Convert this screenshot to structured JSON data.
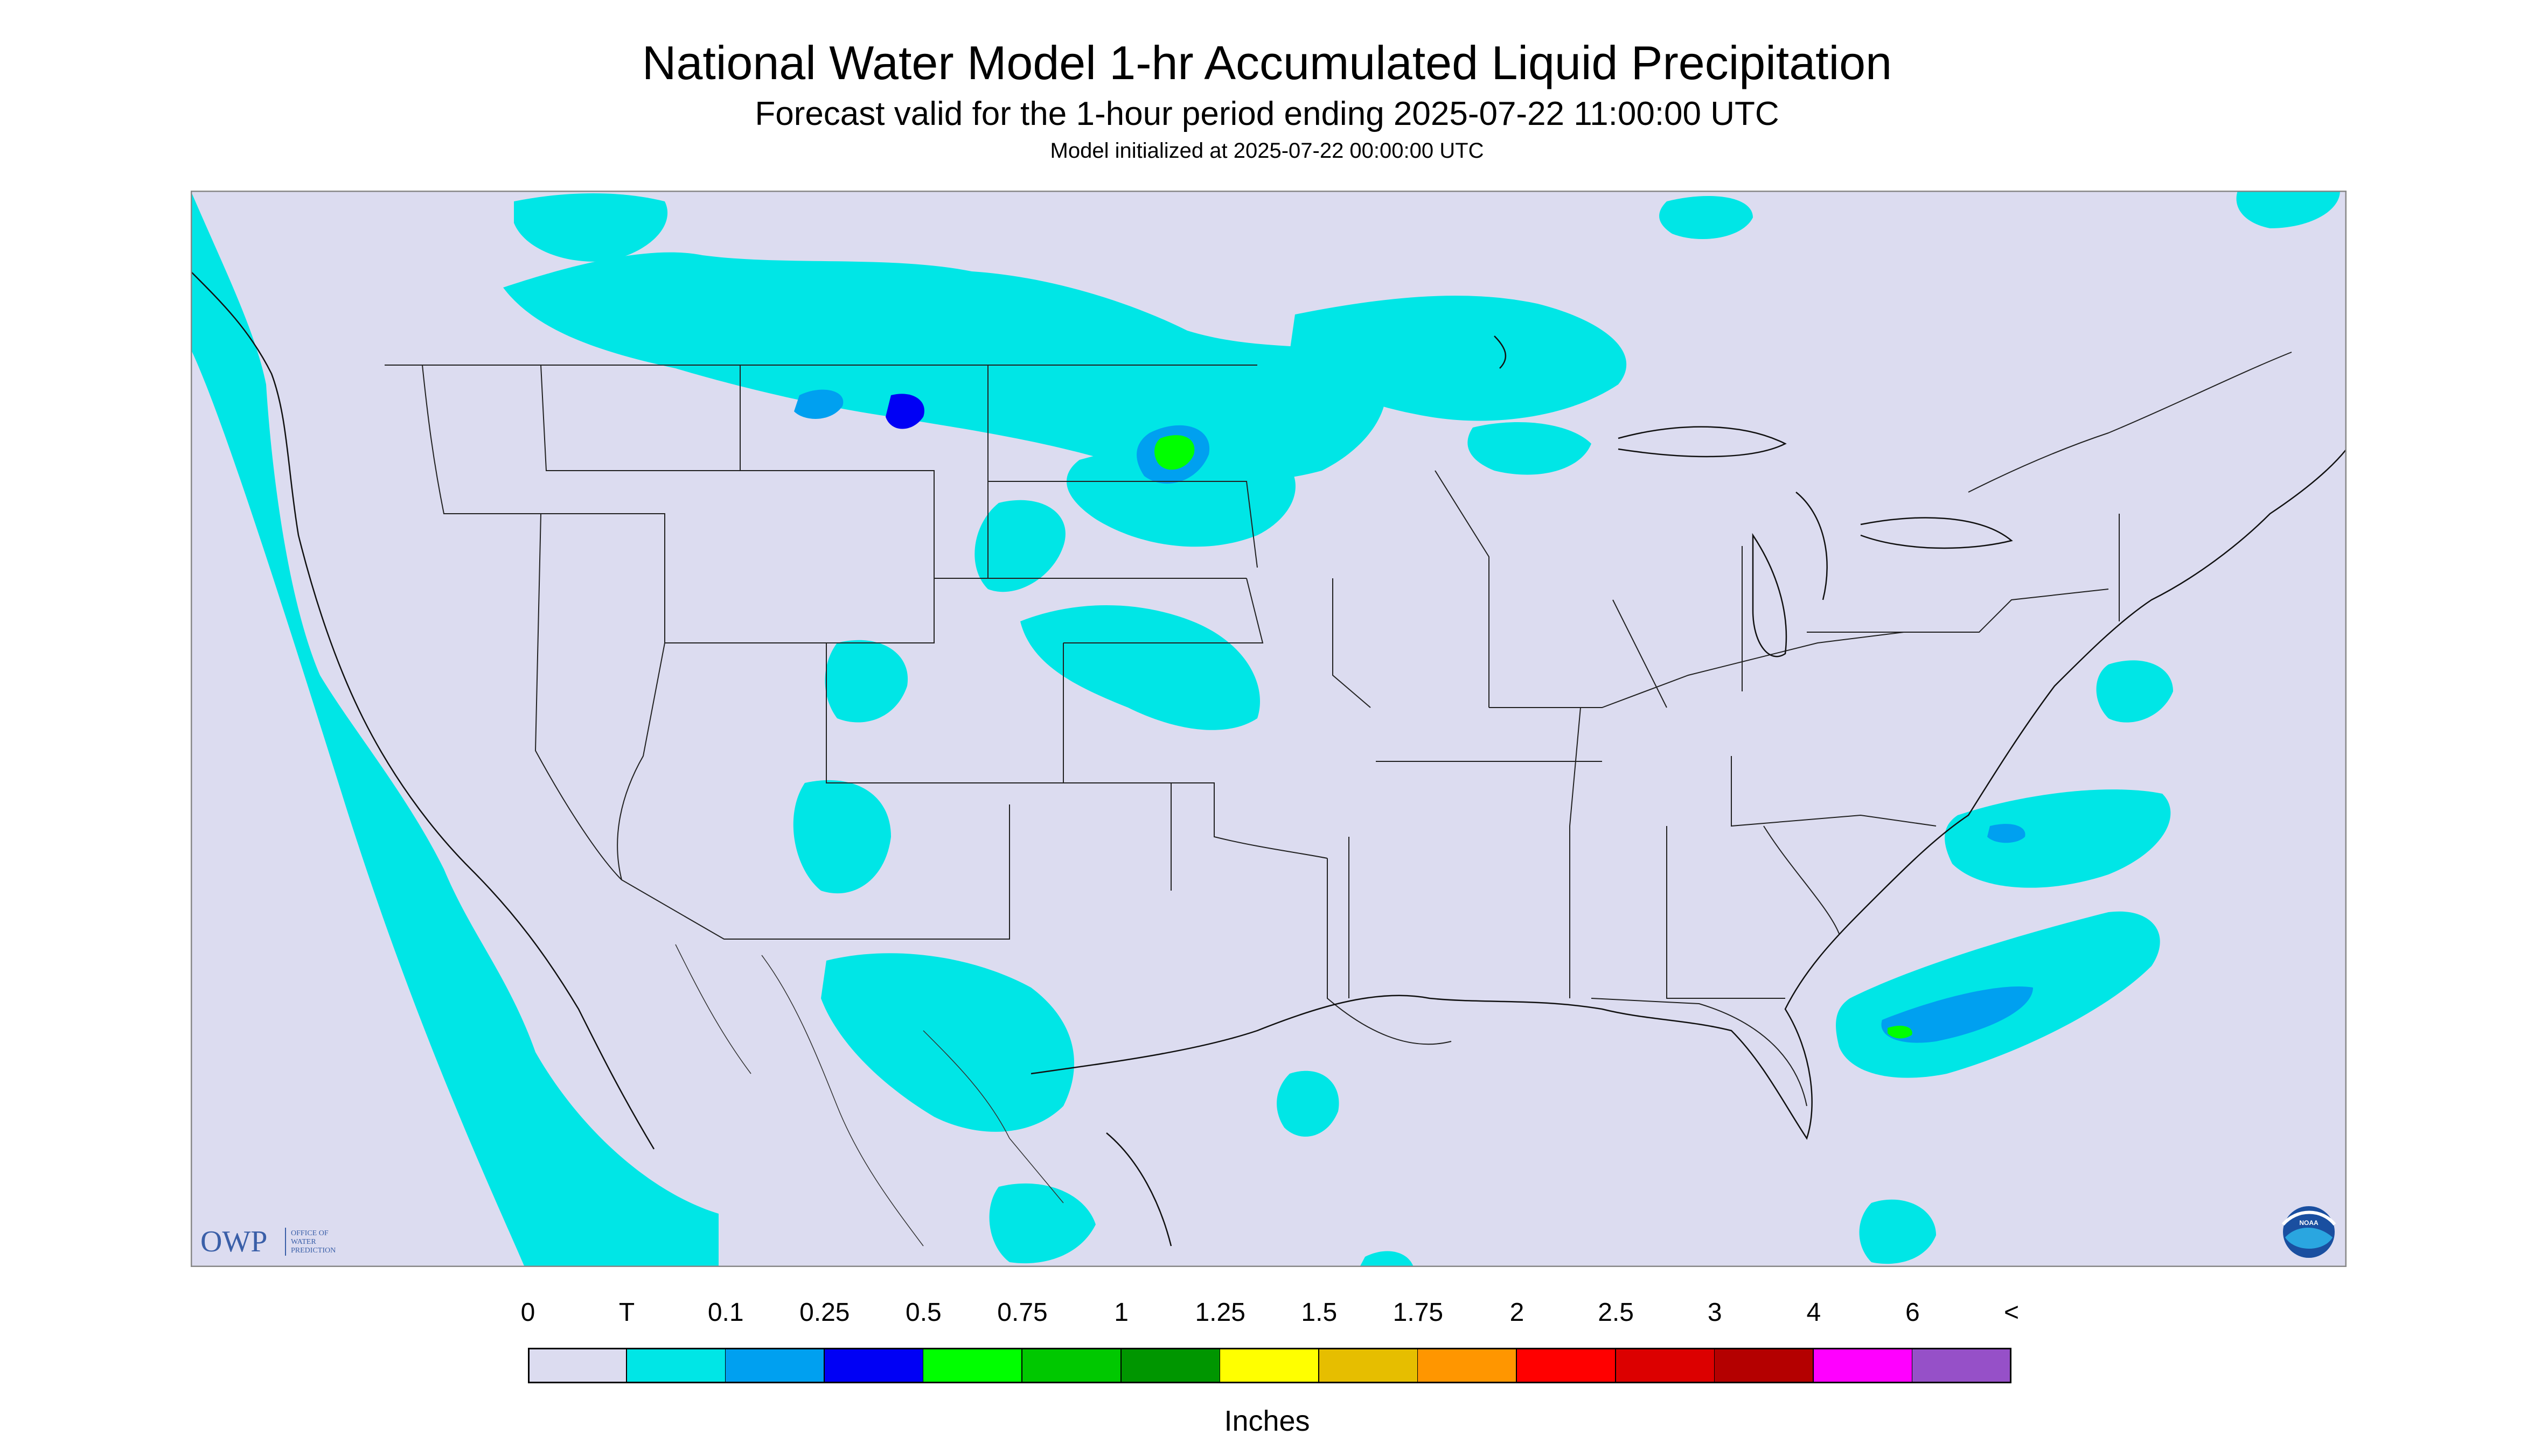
{
  "title": "National Water Model 1-hr Accumulated Liquid Precipitation",
  "subtitle": "Forecast valid for the 1-hour period ending 2025-07-22 11:00:00 UTC",
  "init_text": "Model initialized at 2025-07-22 00:00:00 UTC",
  "owp_logo": {
    "abbr": "OWP",
    "line1": "OFFICE OF",
    "line2": "WATER",
    "line3": "PREDICTION"
  },
  "noaa_logo": {
    "text": "NOAA"
  },
  "legend": {
    "labels": [
      "0",
      "T",
      "0.1",
      "0.25",
      "0.5",
      "0.75",
      "1",
      "1.25",
      "1.5",
      "1.75",
      "2",
      "2.5",
      "3",
      "4",
      "6",
      "<"
    ],
    "colors": [
      "#dcdcf0",
      "#00e6e6",
      "#00a0f0",
      "#0000f5",
      "#00ff00",
      "#00c800",
      "#009600",
      "#ffff00",
      "#e6be00",
      "#ff9600",
      "#ff0000",
      "#dc0000",
      "#b40000",
      "#ff00ff",
      "#9650c8"
    ],
    "units": "Inches"
  }
}
